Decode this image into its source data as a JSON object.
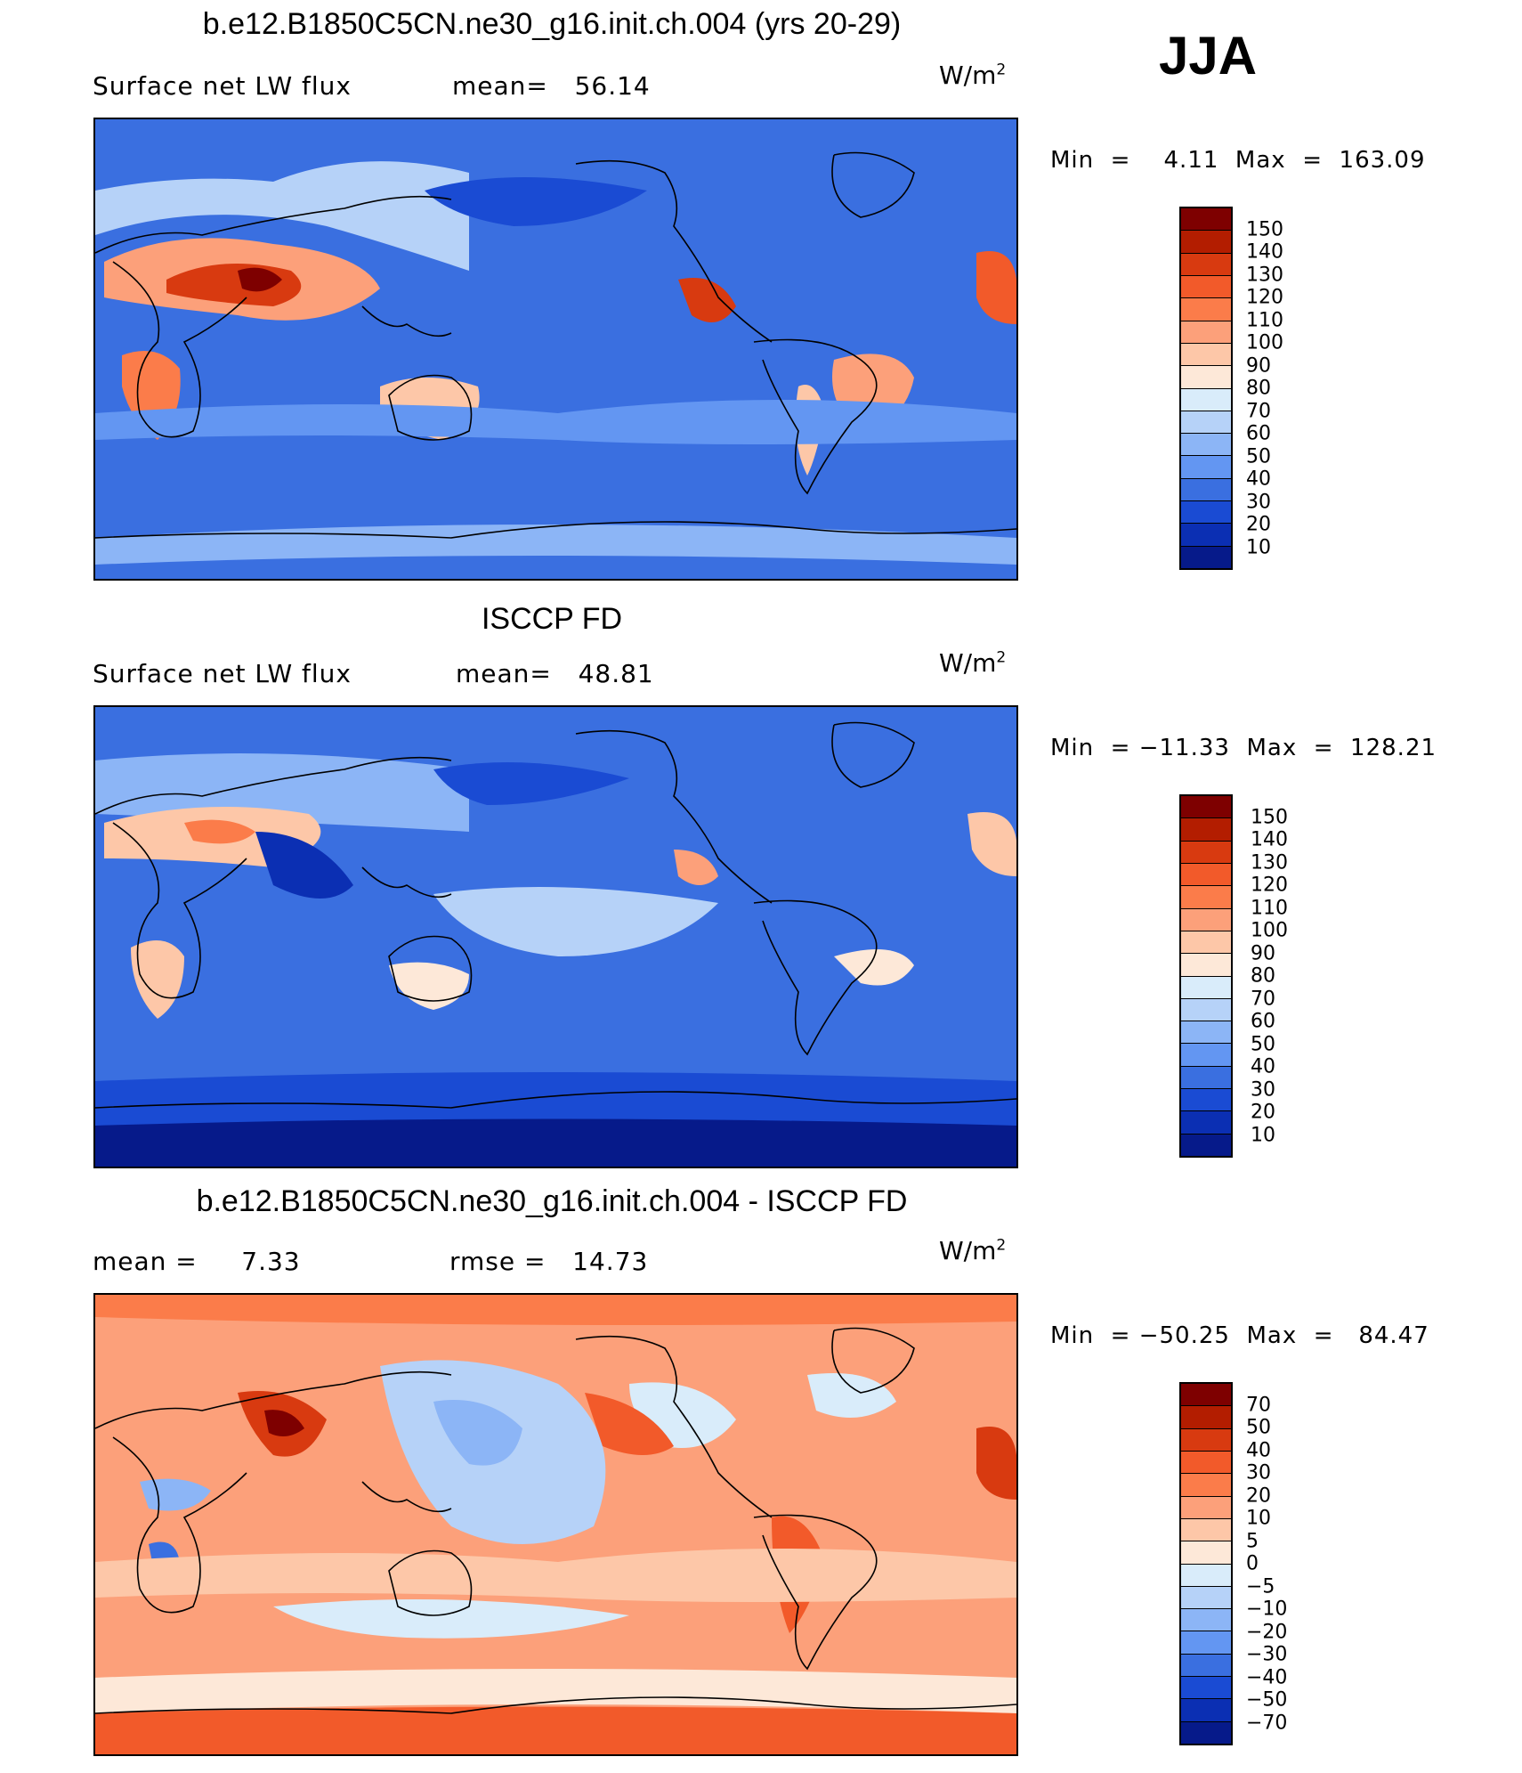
{
  "season": "JJA",
  "unit": {
    "prefix": "W/m",
    "exp": "2"
  },
  "panels": [
    {
      "title": "b.e12.B1850C5CN.ne30_g16.init.ch.004 (yrs 20-29)",
      "left": "Surface net LW flux",
      "stat": "mean=   56.14",
      "minmax": "Min  =    4.11  Max  =  163.09",
      "levels": [
        "150",
        "140",
        "130",
        "120",
        "110",
        "100",
        "90",
        "80",
        "70",
        "60",
        "50",
        "40",
        "30",
        "20",
        "10"
      ],
      "colors": [
        "#7e0000",
        "#b31d00",
        "#d83a10",
        "#f25a2a",
        "#fb7c4a",
        "#fca07a",
        "#fdc7a8",
        "#fde8d8",
        "#d9ecfa",
        "#b6d2f8",
        "#8cb5f6",
        "#6396f2",
        "#3a6fe0",
        "#1a4bd3",
        "#0b2fb3",
        "#061a8a"
      ]
    },
    {
      "title": "ISCCP FD",
      "left": "Surface net LW flux",
      "stat": "mean=   48.81",
      "minmax": "Min  = −11.33  Max  =  128.21",
      "levels": [
        "150",
        "140",
        "130",
        "120",
        "110",
        "100",
        "90",
        "80",
        "70",
        "60",
        "50",
        "40",
        "30",
        "20",
        "10"
      ],
      "colors": [
        "#7e0000",
        "#b31d00",
        "#d83a10",
        "#f25a2a",
        "#fb7c4a",
        "#fca07a",
        "#fdc7a8",
        "#fde8d8",
        "#d9ecfa",
        "#b6d2f8",
        "#8cb5f6",
        "#6396f2",
        "#3a6fe0",
        "#1a4bd3",
        "#0b2fb3",
        "#061a8a"
      ]
    },
    {
      "title": "b.e12.B1850C5CN.ne30_g16.init.ch.004 - ISCCP FD",
      "left": "mean =     7.33",
      "stat": "rmse =   14.73",
      "minmax": "Min  = −50.25  Max  =   84.47",
      "levels": [
        "70",
        "50",
        "40",
        "30",
        "20",
        "10",
        "5",
        "0",
        "−5",
        "−10",
        "−20",
        "−30",
        "−40",
        "−50",
        "−70"
      ],
      "colors": [
        "#7e0000",
        "#b31d00",
        "#d83a10",
        "#f25a2a",
        "#fb7c4a",
        "#fca07a",
        "#fdc7a8",
        "#fde8d8",
        "#d9ecfa",
        "#b6d2f8",
        "#8cb5f6",
        "#6396f2",
        "#3a6fe0",
        "#1a4bd3",
        "#0b2fb3",
        "#061a8a"
      ]
    }
  ]
}
